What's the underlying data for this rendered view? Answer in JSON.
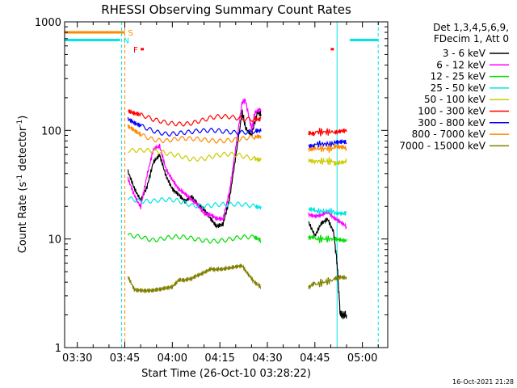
{
  "chart_data": {
    "type": "line",
    "title": "RHESSI Observing Summary Count Rates",
    "xlabel": "Start Time (26-Oct-10 03:28:22)",
    "ylabel": "Count Rate (s",
    "ylabel_sup1": "-1",
    "ylabel_mid": " detector",
    "ylabel_sup2": "-1",
    "ylabel_end": ")",
    "y_scale": "log",
    "ylim": [
      1,
      1000
    ],
    "xlim_minutes": [
      206,
      308
    ],
    "x_ticks": [
      {
        "t": 210,
        "label": "03:30"
      },
      {
        "t": 225,
        "label": "03:45"
      },
      {
        "t": 240,
        "label": "04:00"
      },
      {
        "t": 255,
        "label": "04:15"
      },
      {
        "t": 270,
        "label": "04:30"
      },
      {
        "t": 285,
        "label": "04:45"
      },
      {
        "t": 300,
        "label": "05:00"
      }
    ],
    "y_ticks": [
      {
        "v": 1,
        "label": "1"
      },
      {
        "v": 10,
        "label": "10"
      },
      {
        "v": 100,
        "label": "100"
      },
      {
        "v": 1000,
        "label": "1000"
      }
    ],
    "legend": {
      "position": "top-right",
      "header": [
        "Det 1,3,4,5,6,9,",
        "FDecim 1, Att 0"
      ]
    },
    "segments_minutes": [
      [
        226,
        268
      ],
      [
        283,
        295
      ]
    ],
    "series": [
      {
        "name": "3 - 6 keV",
        "color": "#000000",
        "points": [
          [
            226,
            40
          ],
          [
            228,
            28
          ],
          [
            230,
            22
          ],
          [
            232,
            30
          ],
          [
            234,
            52
          ],
          [
            236,
            62
          ],
          [
            238,
            40
          ],
          [
            240,
            30
          ],
          [
            242,
            26
          ],
          [
            244,
            22
          ],
          [
            246,
            24
          ],
          [
            248,
            20
          ],
          [
            250,
            18
          ],
          [
            252,
            15
          ],
          [
            254,
            13
          ],
          [
            256,
            14
          ],
          [
            258,
            24
          ],
          [
            260,
            60
          ],
          [
            262,
            150
          ],
          [
            263,
            110
          ],
          [
            265,
            90
          ],
          [
            266,
            120
          ],
          [
            267,
            150
          ],
          [
            268,
            140
          ],
          [
            283,
            15
          ],
          [
            285,
            11
          ],
          [
            287,
            14
          ],
          [
            289,
            15
          ],
          [
            291,
            11
          ],
          [
            292,
            6
          ],
          [
            293,
            2
          ],
          [
            294,
            2
          ],
          [
            295,
            2
          ]
        ]
      },
      {
        "name": "6 - 12 keV",
        "color": "#ff00ff",
        "points": [
          [
            226,
            35
          ],
          [
            228,
            25
          ],
          [
            230,
            20
          ],
          [
            232,
            40
          ],
          [
            234,
            70
          ],
          [
            236,
            75
          ],
          [
            238,
            45
          ],
          [
            240,
            35
          ],
          [
            242,
            28
          ],
          [
            244,
            25
          ],
          [
            246,
            22
          ],
          [
            248,
            20
          ],
          [
            250,
            17
          ],
          [
            252,
            17
          ],
          [
            254,
            16
          ],
          [
            256,
            16
          ],
          [
            258,
            28
          ],
          [
            260,
            70
          ],
          [
            262,
            180
          ],
          [
            263,
            190
          ],
          [
            265,
            100
          ],
          [
            266,
            140
          ],
          [
            268,
            150
          ],
          [
            283,
            17
          ],
          [
            285,
            16
          ],
          [
            287,
            16
          ],
          [
            289,
            17
          ],
          [
            291,
            15
          ],
          [
            293,
            14
          ],
          [
            295,
            13
          ]
        ]
      },
      {
        "name": "12 - 25 keV",
        "color": "#00dd00",
        "points": [
          [
            226,
            11
          ],
          [
            230,
            11
          ],
          [
            234,
            10
          ],
          [
            238,
            10
          ],
          [
            242,
            10
          ],
          [
            246,
            10
          ],
          [
            250,
            10
          ],
          [
            254,
            10
          ],
          [
            258,
            10
          ],
          [
            262,
            10
          ],
          [
            266,
            10
          ],
          [
            268,
            9.5
          ],
          [
            283,
            10
          ],
          [
            285,
            10
          ],
          [
            288,
            10
          ],
          [
            291,
            10
          ],
          [
            293,
            10
          ],
          [
            295,
            10
          ]
        ]
      },
      {
        "name": "25 - 50 keV",
        "color": "#00e5e5",
        "points": [
          [
            226,
            25
          ],
          [
            230,
            23
          ],
          [
            234,
            22
          ],
          [
            238,
            22
          ],
          [
            242,
            22
          ],
          [
            246,
            21
          ],
          [
            250,
            21
          ],
          [
            254,
            21
          ],
          [
            258,
            20
          ],
          [
            262,
            20
          ],
          [
            266,
            20
          ],
          [
            268,
            20
          ],
          [
            283,
            18
          ],
          [
            285,
            18
          ],
          [
            288,
            18
          ],
          [
            291,
            18
          ],
          [
            293,
            18
          ],
          [
            295,
            18
          ]
        ]
      },
      {
        "name": "50 - 100 keV",
        "color": "#cccc00",
        "points": [
          [
            226,
            68
          ],
          [
            230,
            65
          ],
          [
            234,
            62
          ],
          [
            238,
            60
          ],
          [
            242,
            60
          ],
          [
            246,
            57
          ],
          [
            250,
            56
          ],
          [
            254,
            57
          ],
          [
            258,
            58
          ],
          [
            262,
            58
          ],
          [
            266,
            57
          ],
          [
            268,
            56
          ],
          [
            283,
            52
          ],
          [
            285,
            52
          ],
          [
            288,
            52
          ],
          [
            291,
            52
          ],
          [
            293,
            52
          ],
          [
            295,
            52
          ]
        ]
      },
      {
        "name": "100 - 300 keV",
        "color": "#ff0000",
        "points": [
          [
            226,
            150
          ],
          [
            228,
            140
          ],
          [
            230,
            133
          ],
          [
            234,
            122
          ],
          [
            238,
            120
          ],
          [
            242,
            120
          ],
          [
            246,
            119
          ],
          [
            250,
            122
          ],
          [
            254,
            128
          ],
          [
            258,
            132
          ],
          [
            262,
            133
          ],
          [
            266,
            132
          ],
          [
            268,
            130
          ],
          [
            283,
            97
          ],
          [
            285,
            97
          ],
          [
            288,
            97
          ],
          [
            291,
            97
          ],
          [
            293,
            97
          ],
          [
            295,
            97
          ]
        ]
      },
      {
        "name": "300 - 800 keV",
        "color": "#0000ff",
        "points": [
          [
            226,
            122
          ],
          [
            228,
            112
          ],
          [
            230,
            106
          ],
          [
            234,
            100
          ],
          [
            238,
            97
          ],
          [
            242,
            97
          ],
          [
            246,
            95
          ],
          [
            250,
            95
          ],
          [
            254,
            98
          ],
          [
            258,
            100
          ],
          [
            262,
            100
          ],
          [
            266,
            99
          ],
          [
            268,
            98
          ],
          [
            283,
            75
          ],
          [
            285,
            75
          ],
          [
            288,
            75
          ],
          [
            291,
            75
          ],
          [
            293,
            75
          ],
          [
            295,
            75
          ]
        ]
      },
      {
        "name": "800 - 7000 keV",
        "color": "#ff8800",
        "points": [
          [
            226,
            105
          ],
          [
            228,
            98
          ],
          [
            230,
            92
          ],
          [
            234,
            86
          ],
          [
            238,
            83
          ],
          [
            242,
            83
          ],
          [
            246,
            80
          ],
          [
            250,
            80
          ],
          [
            254,
            82
          ],
          [
            258,
            85
          ],
          [
            262,
            85
          ],
          [
            266,
            84
          ],
          [
            268,
            84
          ],
          [
            283,
            68
          ],
          [
            285,
            68
          ],
          [
            288,
            68
          ],
          [
            291,
            68
          ],
          [
            293,
            68
          ],
          [
            295,
            68
          ]
        ]
      },
      {
        "name": "7000 - 15000 keV",
        "color": "#808000",
        "points": [
          [
            226,
            4.5
          ],
          [
            228,
            3.5
          ],
          [
            230,
            3.5
          ],
          [
            232,
            3.5
          ],
          [
            234,
            3.5
          ],
          [
            236,
            3.5
          ],
          [
            238,
            3.5
          ],
          [
            240,
            3.5
          ],
          [
            242,
            4
          ],
          [
            244,
            4
          ],
          [
            246,
            4.2
          ],
          [
            248,
            4.6
          ],
          [
            250,
            5
          ],
          [
            252,
            5.5
          ],
          [
            254,
            5.5
          ],
          [
            256,
            5.5
          ],
          [
            258,
            5.5
          ],
          [
            260,
            5.5
          ],
          [
            262,
            5.5
          ],
          [
            264,
            4.5
          ],
          [
            266,
            3.8
          ],
          [
            268,
            3.5
          ],
          [
            283,
            3.5
          ],
          [
            285,
            3.8
          ],
          [
            288,
            4
          ],
          [
            291,
            4.2
          ],
          [
            293,
            4.5
          ],
          [
            295,
            4.5
          ]
        ]
      }
    ],
    "state_bars": [
      {
        "label": "S",
        "color": "#ff8800",
        "level": 800,
        "from": 206,
        "to": 225
      },
      {
        "label": "N",
        "color": "#00e5e5",
        "level": 680,
        "from": 206,
        "to": 223.5
      },
      {
        "label": "N",
        "color": "#00e5e5",
        "level": 680,
        "from": 296,
        "to": 305
      },
      {
        "label": "F",
        "color": "#ff0000",
        "level": 560,
        "from": 230,
        "to": 231
      },
      {
        "label": "F",
        "color": "#ff0000",
        "level": 560,
        "from": 290,
        "to": 291
      }
    ],
    "vertical_markers": [
      {
        "t": 206,
        "color": "#00e5e5",
        "style": "solid"
      },
      {
        "t": 224,
        "color": "#00e5e5",
        "style": "dashed"
      },
      {
        "t": 225,
        "color": "#ff8800",
        "style": "dashed"
      },
      {
        "t": 292,
        "color": "#00e5e5",
        "style": "solid"
      },
      {
        "t": 305,
        "color": "#00e5e5",
        "style": "dashed"
      }
    ],
    "timestamp": "16-Oct-2021 21:28"
  }
}
